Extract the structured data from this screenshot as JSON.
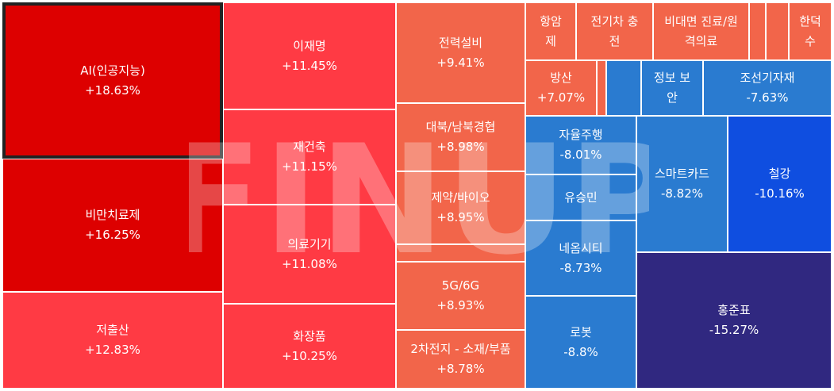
{
  "watermark": "FINUP",
  "tiles": [
    {
      "name": "AI(인공지능)",
      "change": "+18.63%",
      "color": "#dd0000",
      "selected": true
    },
    {
      "name": "비만치료제",
      "change": "+16.25%",
      "color": "#dd0000"
    },
    {
      "name": "저출산",
      "change": "+12.83%",
      "color": "#ff3a44"
    },
    {
      "name": "이재명",
      "change": "+11.45%",
      "color": "#ff3a44"
    },
    {
      "name": "재건축",
      "change": "+11.15%",
      "color": "#ff3a44"
    },
    {
      "name": "의료기기",
      "change": "+11.08%",
      "color": "#ff3a44"
    },
    {
      "name": "화장품",
      "change": "+10.25%",
      "color": "#ff3a44"
    },
    {
      "name": "전력설비",
      "change": "+9.41%",
      "color": "#f2654a"
    },
    {
      "name": "대북/남북경협",
      "change": "+8.98%",
      "color": "#f2654a"
    },
    {
      "name": "제약/바이오",
      "change": "+8.95%",
      "color": "#f2654a"
    },
    {
      "name": "",
      "change": "",
      "color": "#f2654a"
    },
    {
      "name": "5G/6G",
      "change": "+8.93%",
      "color": "#f2654a"
    },
    {
      "name": "2차전지 - 소재/부품",
      "change": "+8.78%",
      "color": "#f2654a"
    },
    {
      "name": "항암\n제",
      "change": "",
      "color": "#f2654a"
    },
    {
      "name": "전기차 충\n전",
      "change": "",
      "color": "#f2654a"
    },
    {
      "name": "비대면 진료/원\n격의료",
      "change": "",
      "color": "#f2654a"
    },
    {
      "name": "",
      "change": "",
      "color": "#f2654a"
    },
    {
      "name": "",
      "change": "",
      "color": "#f2654a"
    },
    {
      "name": "한덕\n수",
      "change": "",
      "color": "#f2654a"
    },
    {
      "name": "방산",
      "change": "+7.07%",
      "color": "#f2654a"
    },
    {
      "name": "",
      "change": "",
      "color": "#f2654a"
    },
    {
      "name": "",
      "change": "",
      "color": "#2a7bd0"
    },
    {
      "name": "정보 보\n안",
      "change": "",
      "color": "#2a7bd0"
    },
    {
      "name": "조선기자재",
      "change": "-7.63%",
      "color": "#2a7bd0"
    },
    {
      "name": "자율주행",
      "change": "-8.01%",
      "color": "#2a7bd0"
    },
    {
      "name": "유승민",
      "change": "",
      "color": "#2a7bd0"
    },
    {
      "name": "네옴시티",
      "change": "-8.73%",
      "color": "#2a7bd0"
    },
    {
      "name": "로봇",
      "change": "-8.8%",
      "color": "#2a7bd0"
    },
    {
      "name": "스마트카드",
      "change": "-8.82%",
      "color": "#2a7bd0"
    },
    {
      "name": "철강",
      "change": "-10.16%",
      "color": "#0f4ee0"
    },
    {
      "name": "홍준표",
      "change": "-15.27%",
      "color": "#302880"
    }
  ]
}
